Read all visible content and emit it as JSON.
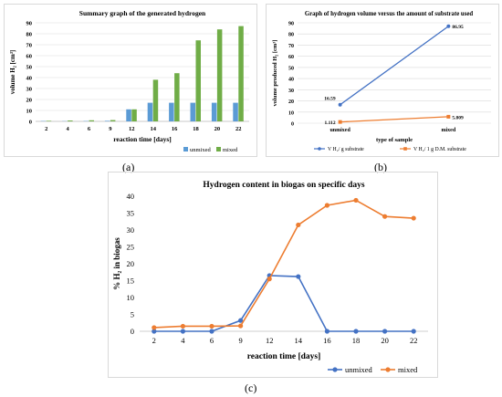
{
  "chart_data": [
    {
      "panel_label": "(a)",
      "type": "bar",
      "title": "Summary graph of the generated hydrogen",
      "xlabel": "reaction time [days]",
      "ylabel": "volume H₂ [cm³]",
      "ylim": [
        0,
        90
      ],
      "yticks": [
        0,
        10,
        20,
        30,
        40,
        50,
        60,
        70,
        80,
        90
      ],
      "grid": true,
      "legend": "bottom-right",
      "categories": [
        "2",
        "4",
        "6",
        "9",
        "12",
        "14",
        "16",
        "18",
        "20",
        "22"
      ],
      "series": [
        {
          "name": "unmixed",
          "color": "#5b9bd5",
          "values": [
            0.3,
            0.2,
            0.3,
            0.5,
            11,
            17,
            17,
            17,
            17,
            17
          ]
        },
        {
          "name": "mixed",
          "color": "#70ad47",
          "values": [
            0.5,
            0.8,
            1.0,
            1.2,
            11,
            38,
            44,
            74,
            84,
            87
          ]
        }
      ]
    },
    {
      "panel_label": "(b)",
      "type": "line",
      "title": "Graph of hydrogen volume versus the amount of substrate used",
      "xlabel": "type of sample",
      "ylabel": "volume produced H₂ [cm³]",
      "ylim": [
        0,
        90
      ],
      "yticks": [
        0,
        10,
        20,
        30,
        40,
        50,
        60,
        70,
        80,
        90
      ],
      "grid": true,
      "legend": "bottom",
      "categories": [
        "unmixed",
        "mixed"
      ],
      "series": [
        {
          "name": "V H₂/ g substrate",
          "color": "#4472c4",
          "values": [
            16.59,
            86.95
          ],
          "labels": [
            "16.59",
            "86.95"
          ]
        },
        {
          "name": "V H₂/ 1 g D.M. substrate",
          "color": "#ed7d31",
          "values": [
            1.112,
            5.809
          ],
          "labels": [
            "1.112",
            "5.809"
          ]
        }
      ]
    },
    {
      "panel_label": "(c)",
      "type": "line",
      "title": "Hydrogen content in biogas on specific days",
      "xlabel": "reaction time [days]",
      "ylabel": "% H₂ in biogas",
      "ylim": [
        0,
        40
      ],
      "yticks": [
        0,
        5,
        10,
        15,
        20,
        25,
        30,
        35,
        40
      ],
      "grid": false,
      "legend": "bottom-right",
      "categories": [
        "2",
        "4",
        "6",
        "9",
        "12",
        "14",
        "16",
        "18",
        "20",
        "22"
      ],
      "series": [
        {
          "name": "unmixed",
          "color": "#4472c4",
          "values": [
            0,
            0,
            0,
            3.2,
            16.5,
            16.2,
            0,
            0,
            0,
            0
          ]
        },
        {
          "name": "mixed",
          "color": "#ed7d31",
          "values": [
            1.1,
            1.5,
            1.5,
            1.6,
            15.5,
            31.5,
            37.3,
            38.8,
            34.0,
            33.5
          ]
        }
      ]
    }
  ]
}
